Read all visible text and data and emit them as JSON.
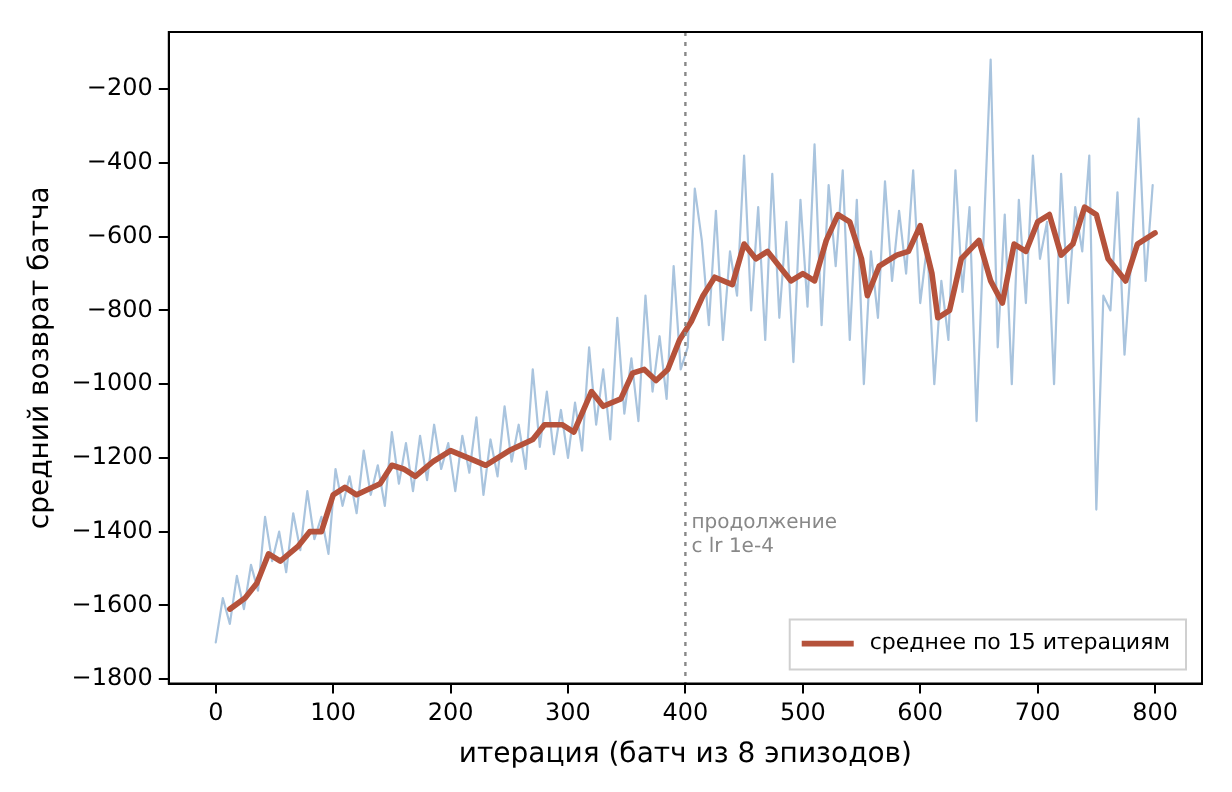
{
  "chart_data": {
    "type": "line",
    "xlabel": "итерация (батч из 8 эпизодов)",
    "ylabel": "средний возврат батча",
    "xlim": [
      -40,
      840
    ],
    "xticks": [
      0,
      100,
      200,
      300,
      400,
      500,
      600,
      700,
      800
    ],
    "ylim": [
      -1812,
      -45
    ],
    "yticks": [
      -1800,
      -1600,
      -1400,
      -1200,
      -1000,
      -800,
      -600,
      -400,
      -200
    ],
    "grid": false,
    "legend": "bottom right",
    "marker": "none",
    "ref_lines": [
      {
        "axis": "x",
        "value": 400,
        "label": "продолжение\nс lr 1e-4",
        "color": "#888888",
        "line_style": "dotted"
      }
    ],
    "series": [
      {
        "color": "#a9c4de",
        "x": [
          0,
          6,
          12,
          18,
          24,
          30,
          36,
          42,
          48,
          54,
          60,
          66,
          72,
          78,
          84,
          90,
          96,
          102,
          108,
          114,
          120,
          126,
          132,
          138,
          144,
          150,
          156,
          162,
          168,
          174,
          180,
          186,
          192,
          198,
          204,
          210,
          216,
          222,
          228,
          234,
          240,
          246,
          252,
          258,
          264,
          270,
          276,
          282,
          288,
          294,
          300,
          306,
          312,
          318,
          324,
          330,
          336,
          342,
          348,
          354,
          360,
          366,
          372,
          378,
          384,
          390,
          396,
          402,
          408,
          414,
          420,
          426,
          432,
          438,
          444,
          450,
          456,
          462,
          468,
          474,
          480,
          486,
          492,
          498,
          504,
          510,
          516,
          522,
          528,
          534,
          540,
          546,
          552,
          558,
          564,
          570,
          576,
          582,
          588,
          594,
          600,
          606,
          612,
          618,
          624,
          630,
          636,
          642,
          648,
          654,
          660,
          666,
          672,
          678,
          684,
          690,
          696,
          702,
          708,
          714,
          720,
          726,
          732,
          738,
          744,
          750,
          756,
          762,
          768,
          774,
          780,
          786,
          792,
          798
        ],
        "values": [
          -1700,
          -1580,
          -1650,
          -1520,
          -1610,
          -1490,
          -1560,
          -1360,
          -1480,
          -1400,
          -1510,
          -1350,
          -1450,
          -1290,
          -1420,
          -1360,
          -1460,
          -1230,
          -1330,
          -1250,
          -1350,
          -1180,
          -1300,
          -1220,
          -1330,
          -1130,
          -1270,
          -1160,
          -1290,
          -1140,
          -1260,
          -1110,
          -1230,
          -1160,
          -1290,
          -1140,
          -1240,
          -1090,
          -1300,
          -1150,
          -1250,
          -1060,
          -1210,
          -1110,
          -1230,
          -960,
          -1170,
          -1020,
          -1190,
          -1070,
          -1200,
          -1050,
          -1180,
          -900,
          -1110,
          -960,
          -1150,
          -820,
          -1080,
          -930,
          -1100,
          -760,
          -1020,
          -870,
          -1040,
          -680,
          -960,
          -900,
          -470,
          -610,
          -840,
          -530,
          -880,
          -640,
          -760,
          -380,
          -800,
          -520,
          -880,
          -430,
          -820,
          -560,
          -940,
          -500,
          -790,
          -350,
          -840,
          -460,
          -680,
          -420,
          -880,
          -500,
          -1000,
          -640,
          -820,
          -450,
          -720,
          -530,
          -700,
          -420,
          -780,
          -620,
          -1000,
          -720,
          -880,
          -420,
          -750,
          -520,
          -1100,
          -600,
          -120,
          -900,
          -540,
          -1000,
          -500,
          -780,
          -380,
          -660,
          -560,
          -1000,
          -430,
          -780,
          -520,
          -640,
          -380,
          -1340,
          -760,
          -800,
          -480,
          -920,
          -650,
          -280,
          -720,
          -460
        ]
      },
      {
        "name": "среднее по 15 итерациям",
        "color": "#b5523b",
        "x": [
          12,
          25,
          35,
          45,
          55,
          70,
          80,
          90,
          100,
          110,
          120,
          140,
          150,
          160,
          170,
          185,
          200,
          215,
          230,
          250,
          270,
          280,
          295,
          305,
          320,
          330,
          345,
          355,
          365,
          375,
          385,
          395,
          405,
          415,
          425,
          440,
          450,
          460,
          470,
          480,
          490,
          500,
          510,
          520,
          530,
          540,
          550,
          555,
          565,
          580,
          590,
          600,
          610,
          615,
          625,
          635,
          650,
          660,
          670,
          680,
          690,
          700,
          710,
          720,
          730,
          740,
          750,
          760,
          775,
          785,
          800
        ],
        "values": [
          -1610,
          -1580,
          -1540,
          -1460,
          -1480,
          -1440,
          -1400,
          -1400,
          -1300,
          -1280,
          -1300,
          -1270,
          -1220,
          -1230,
          -1250,
          -1210,
          -1180,
          -1200,
          -1220,
          -1180,
          -1150,
          -1110,
          -1110,
          -1130,
          -1020,
          -1060,
          -1040,
          -970,
          -960,
          -990,
          -960,
          -880,
          -830,
          -760,
          -710,
          -730,
          -620,
          -660,
          -640,
          -680,
          -720,
          -700,
          -720,
          -610,
          -540,
          -560,
          -660,
          -760,
          -680,
          -650,
          -640,
          -570,
          -700,
          -820,
          -800,
          -660,
          -610,
          -720,
          -780,
          -620,
          -640,
          -560,
          -540,
          -650,
          -620,
          -520,
          -540,
          -660,
          -720,
          -620,
          -590
        ]
      }
    ]
  }
}
